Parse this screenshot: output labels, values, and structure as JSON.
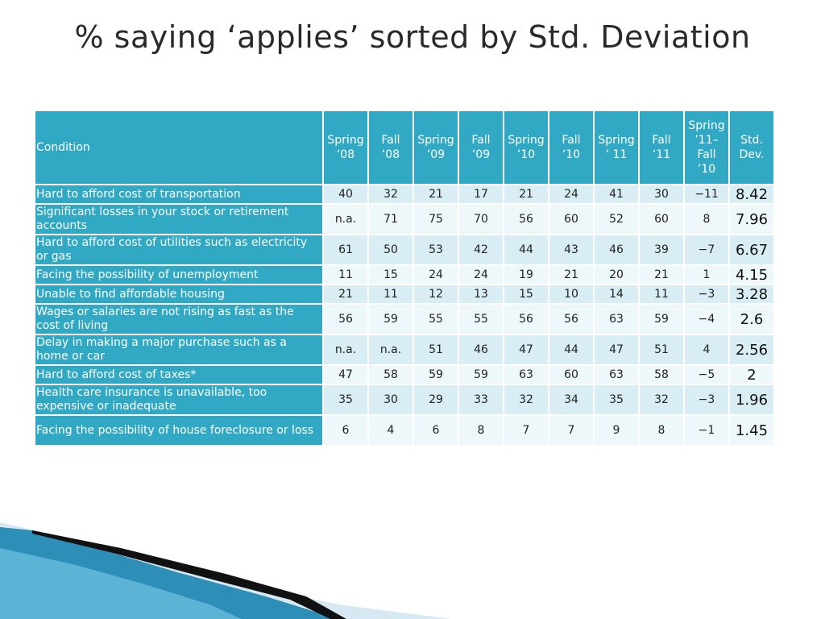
{
  "title": "% saying ‘applies’ sorted by Std. Deviation",
  "table": {
    "headers": [
      [
        "Condition"
      ],
      [
        "Spring",
        "‘08"
      ],
      [
        "Fall",
        "‘08"
      ],
      [
        "Spring",
        "‘09"
      ],
      [
        "Fall",
        "‘09"
      ],
      [
        "Spring",
        "‘10"
      ],
      [
        "Fall",
        "‘10"
      ],
      [
        "Spring",
        "‘ 11"
      ],
      [
        "Fall",
        "‘11"
      ],
      [
        "Spring",
        "’11–",
        "Fall",
        "’10"
      ],
      [
        "Std.",
        "Dev."
      ]
    ],
    "rows": [
      {
        "condition": "Hard to afford cost of transportation",
        "values": [
          "40",
          "32",
          "21",
          "17",
          "21",
          "24",
          "41",
          "30",
          "−11"
        ],
        "sd": "8.42"
      },
      {
        "condition": "Significant losses in your stock or retirement accounts",
        "values": [
          "n.a.",
          "71",
          "75",
          "70",
          "56",
          "60",
          "52",
          "60",
          "8"
        ],
        "sd": "7.96"
      },
      {
        "condition": "Hard to afford cost of utilities such as electricity or gas",
        "values": [
          "61",
          "50",
          "53",
          "42",
          "44",
          "43",
          "46",
          "39",
          "−7"
        ],
        "sd": "6.67"
      },
      {
        "condition": "Facing the possibility of unemployment",
        "values": [
          "11",
          "15",
          "24",
          "24",
          "19",
          "21",
          "20",
          "21",
          "1"
        ],
        "sd": "4.15"
      },
      {
        "condition": "Unable to find affordable housing",
        "values": [
          "21",
          "11",
          "12",
          "13",
          "15",
          "10",
          "14",
          "11",
          "−3"
        ],
        "sd": "3.28"
      },
      {
        "condition": "Wages or salaries are not rising as fast as the cost of living",
        "values": [
          "56",
          "59",
          "55",
          "55",
          "56",
          "56",
          "63",
          "59",
          "−4"
        ],
        "sd": "2.6"
      },
      {
        "condition": "Delay in making a major purchase such as a home or car",
        "values": [
          "n.a.",
          "n.a.",
          "51",
          "46",
          "47",
          "44",
          "47",
          "51",
          "4"
        ],
        "sd": "2.56"
      },
      {
        "condition": "Hard to afford cost of taxes*",
        "values": [
          "47",
          "58",
          "59",
          "59",
          "63",
          "60",
          "63",
          "58",
          "−5"
        ],
        "sd": "2"
      },
      {
        "condition": "Health care insurance is unavailable, too expensive or inadequate",
        "values": [
          "35",
          "30",
          "29",
          "33",
          "32",
          "34",
          "35",
          "32",
          "−3"
        ],
        "sd": "1.96"
      },
      {
        "condition": "Facing the possibility of house foreclosure or loss",
        "values": [
          "6",
          "4",
          "6",
          "8",
          "7",
          "7",
          "9",
          "8",
          "−1"
        ],
        "sd": "1.45"
      }
    ]
  },
  "colors": {
    "header_teal": "#31a9c4",
    "cell_light": "#d9eef4",
    "cell_lighter": "#eef7fa"
  }
}
